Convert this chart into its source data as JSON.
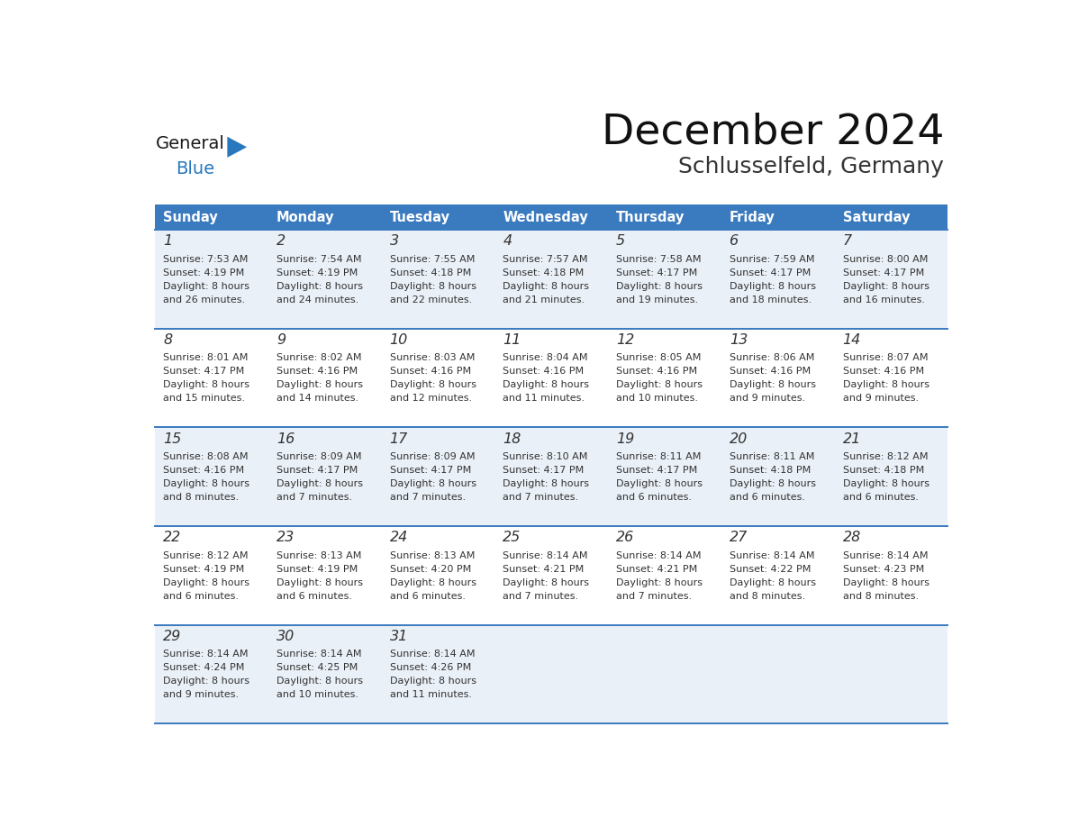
{
  "title": "December 2024",
  "subtitle": "Schlusselfeld, Germany",
  "days_of_week": [
    "Sunday",
    "Monday",
    "Tuesday",
    "Wednesday",
    "Thursday",
    "Friday",
    "Saturday"
  ],
  "header_bg_color": "#3a7abf",
  "header_text_color": "#ffffff",
  "cell_bg_even": "#eaf0f7",
  "cell_bg_odd": "#ffffff",
  "divider_color": "#3a7abf",
  "text_color": "#333333",
  "logo_general_color": "#1a1a1a",
  "logo_blue_color": "#2878be",
  "weeks": [
    [
      {
        "day": 1,
        "sunrise": "7:53 AM",
        "sunset": "4:19 PM",
        "daylight_hrs": 8,
        "daylight_min": 26
      },
      {
        "day": 2,
        "sunrise": "7:54 AM",
        "sunset": "4:19 PM",
        "daylight_hrs": 8,
        "daylight_min": 24
      },
      {
        "day": 3,
        "sunrise": "7:55 AM",
        "sunset": "4:18 PM",
        "daylight_hrs": 8,
        "daylight_min": 22
      },
      {
        "day": 4,
        "sunrise": "7:57 AM",
        "sunset": "4:18 PM",
        "daylight_hrs": 8,
        "daylight_min": 21
      },
      {
        "day": 5,
        "sunrise": "7:58 AM",
        "sunset": "4:17 PM",
        "daylight_hrs": 8,
        "daylight_min": 19
      },
      {
        "day": 6,
        "sunrise": "7:59 AM",
        "sunset": "4:17 PM",
        "daylight_hrs": 8,
        "daylight_min": 18
      },
      {
        "day": 7,
        "sunrise": "8:00 AM",
        "sunset": "4:17 PM",
        "daylight_hrs": 8,
        "daylight_min": 16
      }
    ],
    [
      {
        "day": 8,
        "sunrise": "8:01 AM",
        "sunset": "4:17 PM",
        "daylight_hrs": 8,
        "daylight_min": 15
      },
      {
        "day": 9,
        "sunrise": "8:02 AM",
        "sunset": "4:16 PM",
        "daylight_hrs": 8,
        "daylight_min": 14
      },
      {
        "day": 10,
        "sunrise": "8:03 AM",
        "sunset": "4:16 PM",
        "daylight_hrs": 8,
        "daylight_min": 12
      },
      {
        "day": 11,
        "sunrise": "8:04 AM",
        "sunset": "4:16 PM",
        "daylight_hrs": 8,
        "daylight_min": 11
      },
      {
        "day": 12,
        "sunrise": "8:05 AM",
        "sunset": "4:16 PM",
        "daylight_hrs": 8,
        "daylight_min": 10
      },
      {
        "day": 13,
        "sunrise": "8:06 AM",
        "sunset": "4:16 PM",
        "daylight_hrs": 8,
        "daylight_min": 9
      },
      {
        "day": 14,
        "sunrise": "8:07 AM",
        "sunset": "4:16 PM",
        "daylight_hrs": 8,
        "daylight_min": 9
      }
    ],
    [
      {
        "day": 15,
        "sunrise": "8:08 AM",
        "sunset": "4:16 PM",
        "daylight_hrs": 8,
        "daylight_min": 8
      },
      {
        "day": 16,
        "sunrise": "8:09 AM",
        "sunset": "4:17 PM",
        "daylight_hrs": 8,
        "daylight_min": 7
      },
      {
        "day": 17,
        "sunrise": "8:09 AM",
        "sunset": "4:17 PM",
        "daylight_hrs": 8,
        "daylight_min": 7
      },
      {
        "day": 18,
        "sunrise": "8:10 AM",
        "sunset": "4:17 PM",
        "daylight_hrs": 8,
        "daylight_min": 7
      },
      {
        "day": 19,
        "sunrise": "8:11 AM",
        "sunset": "4:17 PM",
        "daylight_hrs": 8,
        "daylight_min": 6
      },
      {
        "day": 20,
        "sunrise": "8:11 AM",
        "sunset": "4:18 PM",
        "daylight_hrs": 8,
        "daylight_min": 6
      },
      {
        "day": 21,
        "sunrise": "8:12 AM",
        "sunset": "4:18 PM",
        "daylight_hrs": 8,
        "daylight_min": 6
      }
    ],
    [
      {
        "day": 22,
        "sunrise": "8:12 AM",
        "sunset": "4:19 PM",
        "daylight_hrs": 8,
        "daylight_min": 6
      },
      {
        "day": 23,
        "sunrise": "8:13 AM",
        "sunset": "4:19 PM",
        "daylight_hrs": 8,
        "daylight_min": 6
      },
      {
        "day": 24,
        "sunrise": "8:13 AM",
        "sunset": "4:20 PM",
        "daylight_hrs": 8,
        "daylight_min": 6
      },
      {
        "day": 25,
        "sunrise": "8:14 AM",
        "sunset": "4:21 PM",
        "daylight_hrs": 8,
        "daylight_min": 7
      },
      {
        "day": 26,
        "sunrise": "8:14 AM",
        "sunset": "4:21 PM",
        "daylight_hrs": 8,
        "daylight_min": 7
      },
      {
        "day": 27,
        "sunrise": "8:14 AM",
        "sunset": "4:22 PM",
        "daylight_hrs": 8,
        "daylight_min": 8
      },
      {
        "day": 28,
        "sunrise": "8:14 AM",
        "sunset": "4:23 PM",
        "daylight_hrs": 8,
        "daylight_min": 8
      }
    ],
    [
      {
        "day": 29,
        "sunrise": "8:14 AM",
        "sunset": "4:24 PM",
        "daylight_hrs": 8,
        "daylight_min": 9
      },
      {
        "day": 30,
        "sunrise": "8:14 AM",
        "sunset": "4:25 PM",
        "daylight_hrs": 8,
        "daylight_min": 10
      },
      {
        "day": 31,
        "sunrise": "8:14 AM",
        "sunset": "4:26 PM",
        "daylight_hrs": 8,
        "daylight_min": 11
      },
      null,
      null,
      null,
      null
    ]
  ]
}
